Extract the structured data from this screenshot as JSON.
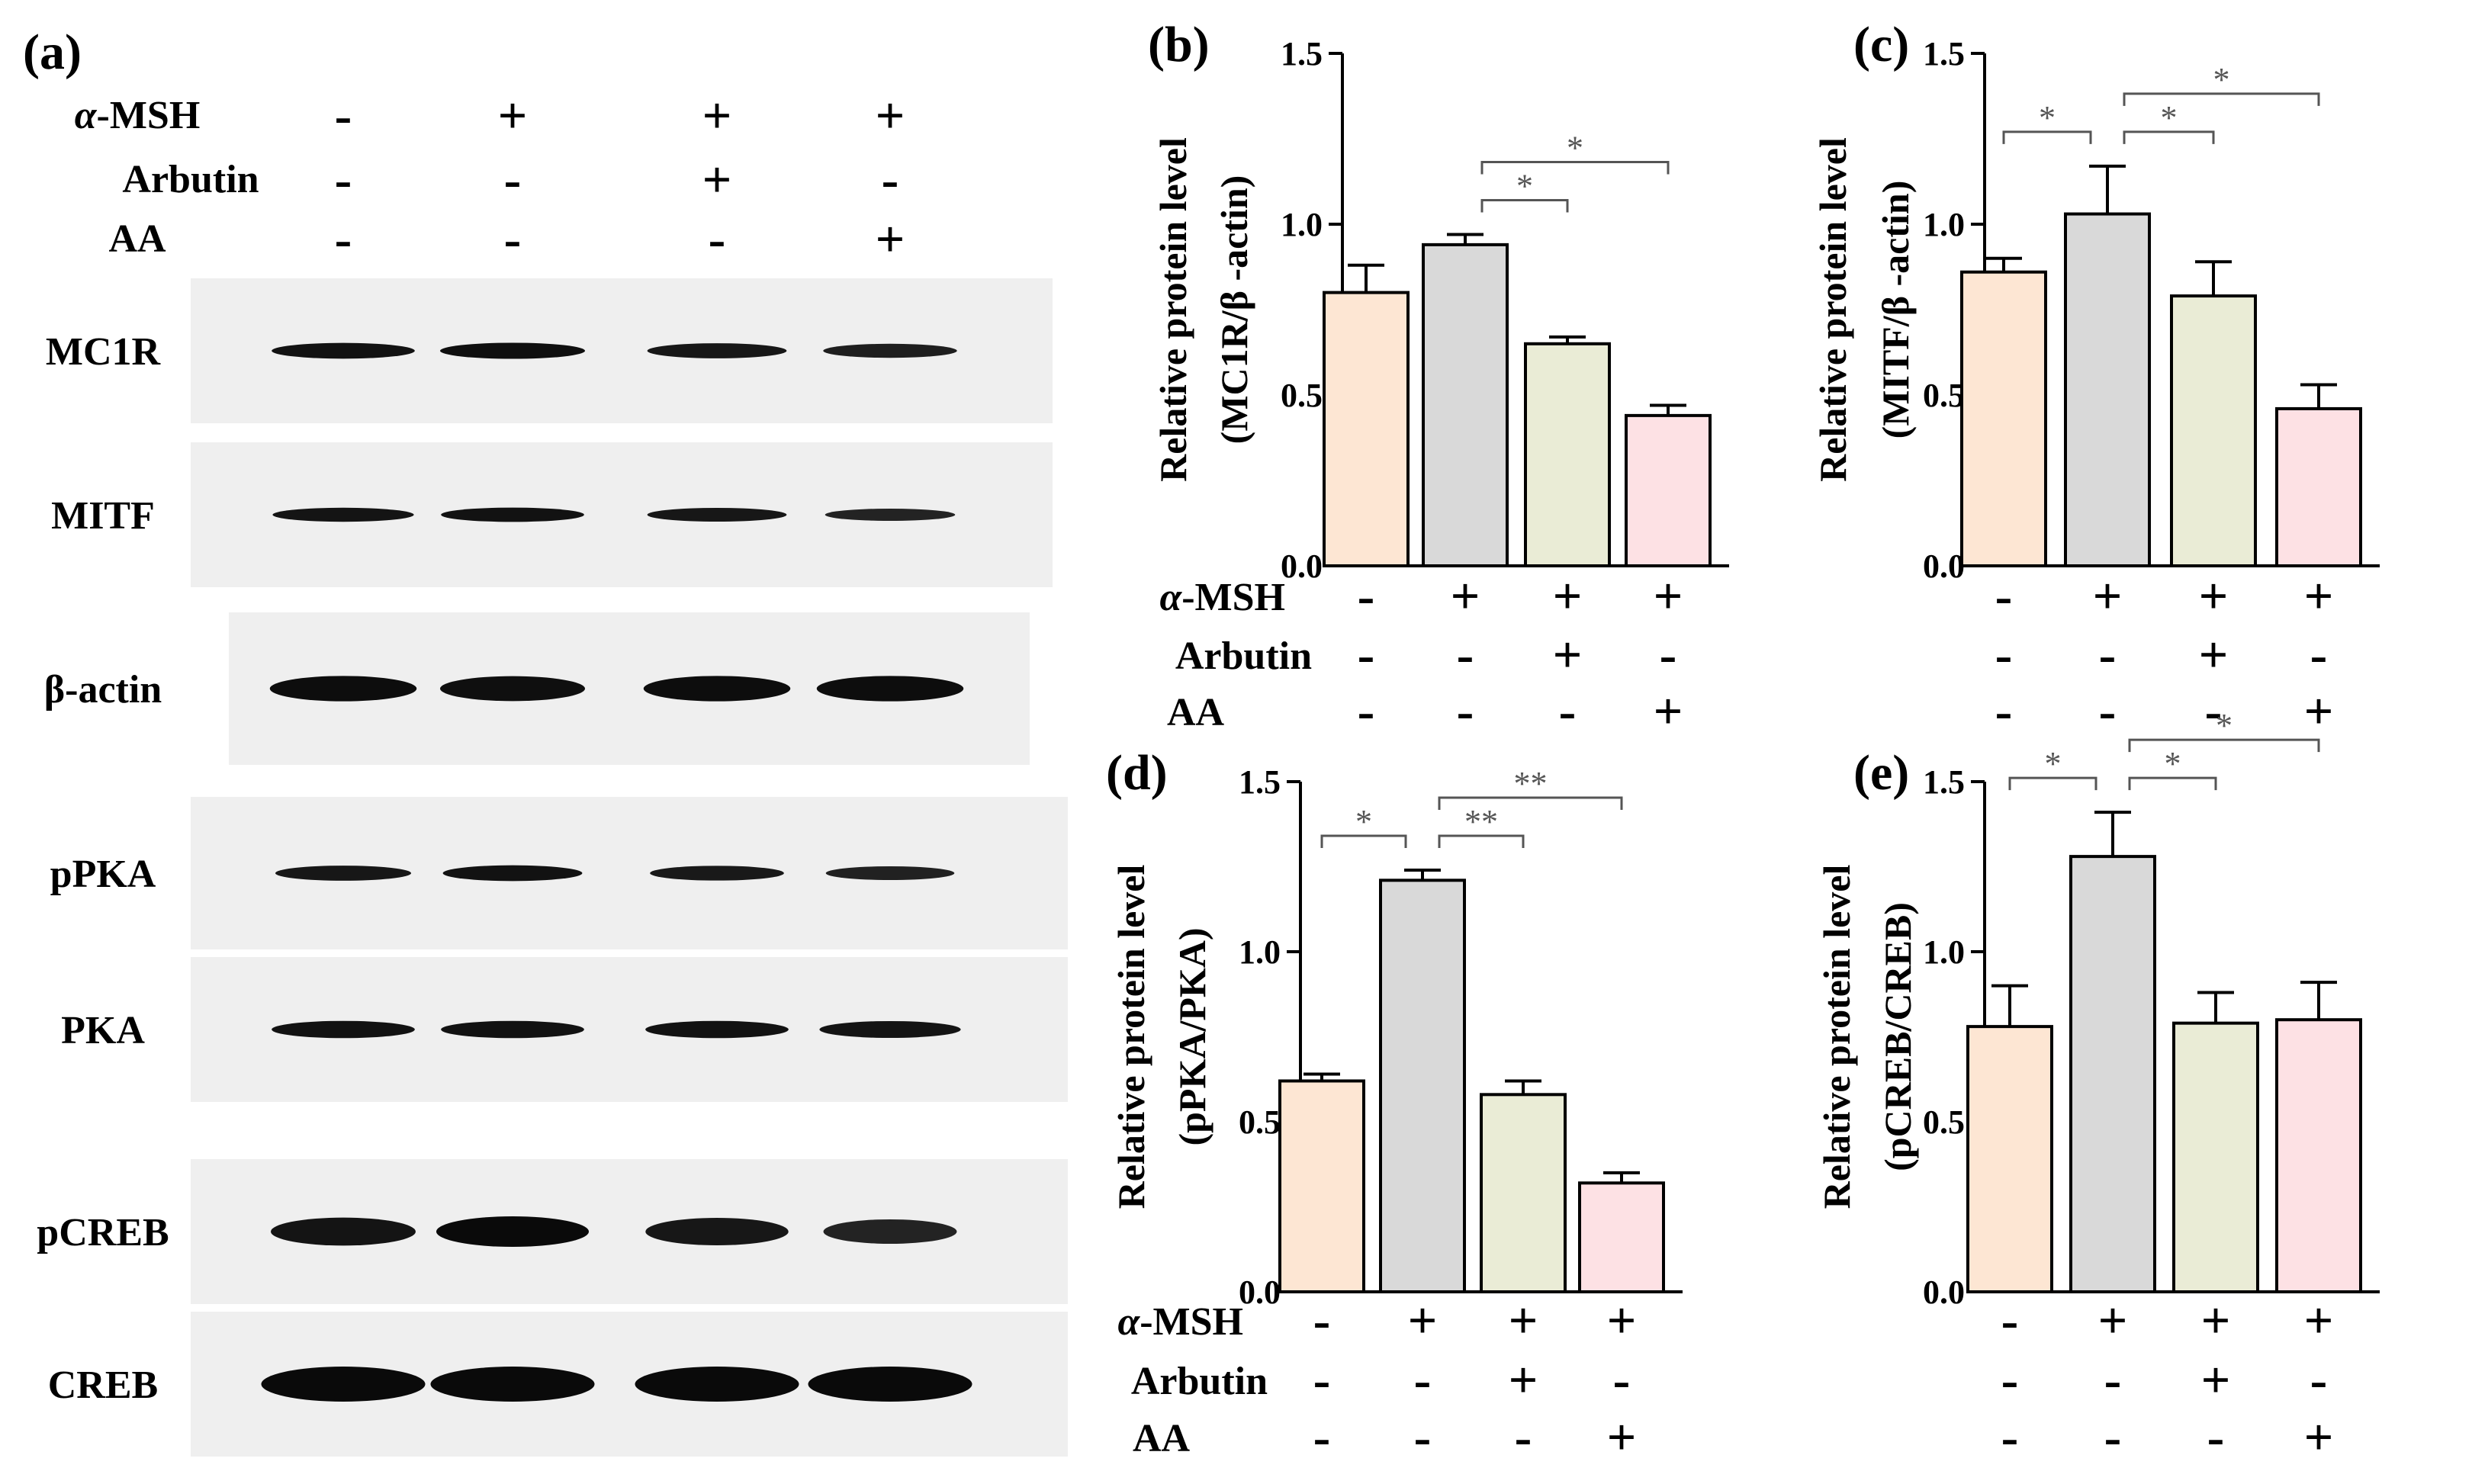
{
  "blot": {
    "panel_label": "(a)",
    "treatments": [
      {
        "label": "α-MSH",
        "marks": [
          "-",
          "+",
          "+",
          "+"
        ]
      },
      {
        "label": "Arbutin",
        "marks": [
          "-",
          "-",
          "+",
          "-"
        ]
      },
      {
        "label": "AA",
        "marks": [
          "-",
          "-",
          "-",
          "+"
        ]
      }
    ],
    "rows": [
      {
        "label": "MC1R",
        "intensity": [
          0.85,
          0.9,
          0.75,
          0.6
        ]
      },
      {
        "label": "MITF",
        "intensity": [
          0.8,
          0.85,
          0.75,
          0.5
        ]
      },
      {
        "label": "β-actin",
        "intensity": [
          0.95,
          0.9,
          0.95,
          0.95
        ]
      },
      {
        "label": "pPKA",
        "intensity": [
          0.75,
          0.85,
          0.7,
          0.55
        ]
      },
      {
        "label": "PKA",
        "intensity": [
          0.85,
          0.85,
          0.85,
          0.8
        ]
      },
      {
        "label": "pCREB",
        "intensity": [
          0.8,
          1.0,
          0.75,
          0.5
        ]
      },
      {
        "label": "CREB",
        "intensity": [
          1.0,
          1.0,
          1.0,
          1.0
        ]
      }
    ]
  },
  "colors": {
    "bars": [
      "#fde6d3",
      "#d9d9d9",
      "#eaecd6",
      "#fde1e4"
    ],
    "bar_stroke": "#000000",
    "significance": "#555555"
  },
  "chart_data": [
    {
      "type": "bar",
      "panel_label": "(b)",
      "ylabel_line1": "Relative protein level",
      "ylabel_line2": "(MC1R/β -actin)",
      "ylim": [
        0,
        1.5
      ],
      "ticks": [
        "0.0",
        "0.5",
        "1.0",
        "1.5"
      ],
      "values": [
        0.8,
        0.94,
        0.65,
        0.44
      ],
      "errors": [
        0.08,
        0.03,
        0.02,
        0.03
      ],
      "significance": [
        {
          "from": 1,
          "to": 2,
          "label": "*"
        },
        {
          "from": 1,
          "to": 3,
          "label": "*"
        }
      ],
      "treatments": [
        {
          "label": "α-MSH",
          "marks": [
            "-",
            "+",
            "+",
            "+"
          ]
        },
        {
          "label": "Arbutin",
          "marks": [
            "-",
            "-",
            "+",
            "-"
          ]
        },
        {
          "label": "AA",
          "marks": [
            "-",
            "-",
            "-",
            "+"
          ]
        }
      ]
    },
    {
      "type": "bar",
      "panel_label": "(c)",
      "ylabel_line1": "Relative protein level",
      "ylabel_line2": "(MITF/β -actin)",
      "ylim": [
        0,
        1.5
      ],
      "ticks": [
        "0.0",
        "0.5",
        "1.0",
        "1.5"
      ],
      "values": [
        0.86,
        1.03,
        0.79,
        0.46
      ],
      "errors": [
        0.04,
        0.14,
        0.1,
        0.07
      ],
      "significance": [
        {
          "from": 0,
          "to": 1,
          "label": "*"
        },
        {
          "from": 1,
          "to": 2,
          "label": "*"
        },
        {
          "from": 1,
          "to": 3,
          "label": "*"
        }
      ],
      "treatments": [
        {
          "label": "",
          "marks": [
            "-",
            "+",
            "+",
            "+"
          ]
        },
        {
          "label": "",
          "marks": [
            "-",
            "-",
            "+",
            "-"
          ]
        },
        {
          "label": "",
          "marks": [
            "-",
            "-",
            "-",
            "+"
          ]
        }
      ]
    },
    {
      "type": "bar",
      "panel_label": "(d)",
      "ylabel_line1": "Relative protein level",
      "ylabel_line2": "(pPKA/PKA)",
      "ylim": [
        0,
        1.5
      ],
      "ticks": [
        "0.0",
        "0.5",
        "1.0",
        "1.5"
      ],
      "values": [
        0.62,
        1.21,
        0.58,
        0.32
      ],
      "errors": [
        0.02,
        0.03,
        0.04,
        0.03
      ],
      "significance": [
        {
          "from": 0,
          "to": 1,
          "label": "*"
        },
        {
          "from": 1,
          "to": 2,
          "label": "**"
        },
        {
          "from": 1,
          "to": 3,
          "label": "**"
        }
      ],
      "treatments": [
        {
          "label": "α-MSH",
          "marks": [
            "-",
            "+",
            "+",
            "+"
          ]
        },
        {
          "label": "Arbutin",
          "marks": [
            "-",
            "-",
            "+",
            "-"
          ]
        },
        {
          "label": "AA",
          "marks": [
            "-",
            "-",
            "-",
            "+"
          ]
        }
      ]
    },
    {
      "type": "bar",
      "panel_label": "(e)",
      "ylabel_line1": "Relative protein level",
      "ylabel_line2": "(pCREB/CREB)",
      "ylim": [
        0,
        1.5
      ],
      "ticks": [
        "0.0",
        "0.5",
        "1.0",
        "1.5"
      ],
      "values": [
        0.78,
        1.28,
        0.79,
        0.8
      ],
      "errors": [
        0.12,
        0.13,
        0.09,
        0.11
      ],
      "significance": [
        {
          "from": 0,
          "to": 1,
          "label": "*"
        },
        {
          "from": 1,
          "to": 2,
          "label": "*"
        },
        {
          "from": 1,
          "to": 3,
          "label": "*"
        }
      ],
      "treatments": [
        {
          "label": "",
          "marks": [
            "-",
            "+",
            "+",
            "+"
          ]
        },
        {
          "label": "",
          "marks": [
            "-",
            "-",
            "+",
            "-"
          ]
        },
        {
          "label": "",
          "marks": [
            "-",
            "-",
            "-",
            "+"
          ]
        }
      ]
    }
  ]
}
